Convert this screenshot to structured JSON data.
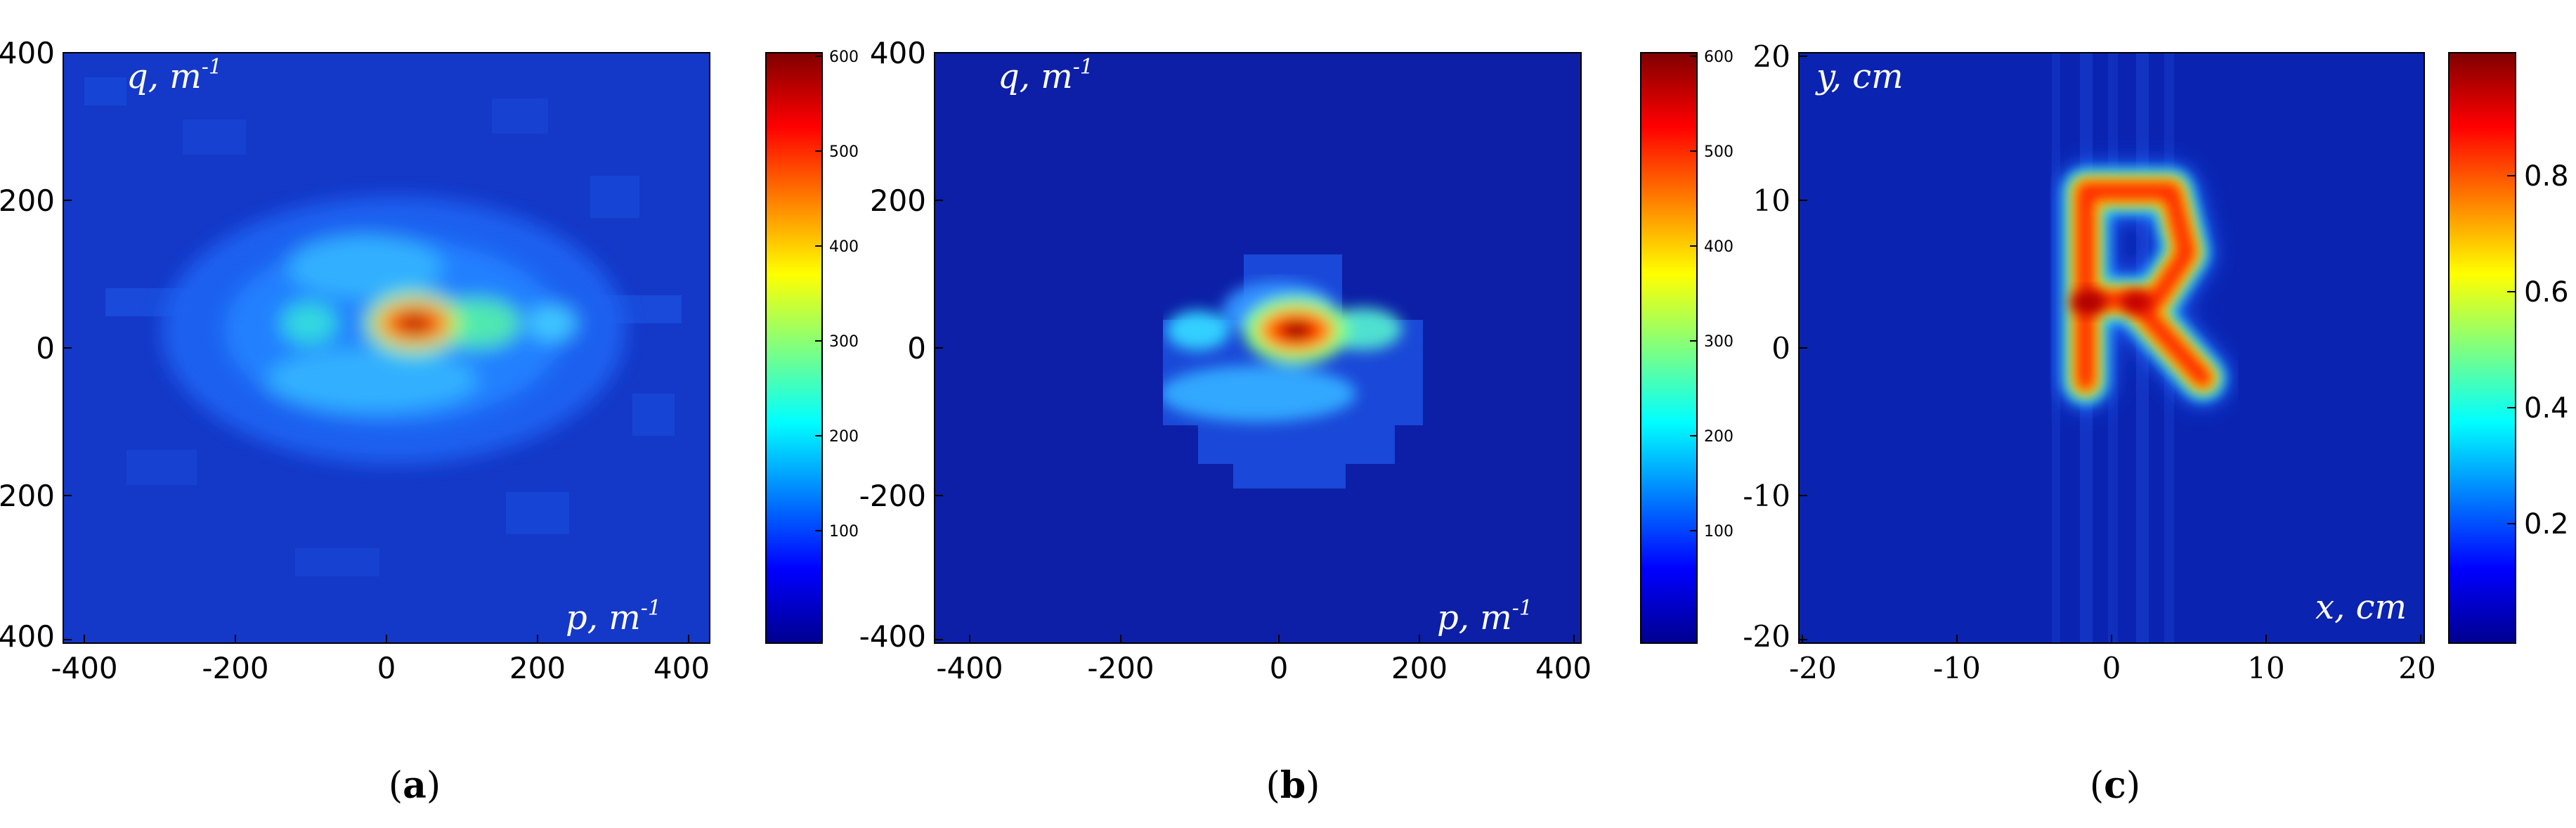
{
  "panels": [
    {
      "caption_open": "(",
      "caption_letter": "a",
      "caption_close": ")",
      "axis_label_x": "p, m",
      "axis_label_x_sup": "-1",
      "axis_label_y": "q, m",
      "axis_label_y_sup": "-1",
      "xticks": [
        "-400",
        "-200",
        "0",
        "200",
        "400"
      ],
      "yticks": [
        "400",
        "200",
        "0",
        "-200",
        "-400"
      ],
      "cbar_ticks": [
        "600",
        "500",
        "400",
        "300",
        "200",
        "100"
      ]
    },
    {
      "caption_open": "(",
      "caption_letter": "b",
      "caption_close": ")",
      "axis_label_x": "p, m",
      "axis_label_x_sup": "-1",
      "axis_label_y": "q, m",
      "axis_label_y_sup": "-1",
      "xticks": [
        "-400",
        "-200",
        "0",
        "200",
        "400"
      ],
      "yticks": [
        "400",
        "200",
        "0",
        "-200",
        "-400"
      ],
      "cbar_ticks": [
        "600",
        "500",
        "400",
        "300",
        "200",
        "100"
      ]
    },
    {
      "caption_open": "(",
      "caption_letter": "c",
      "caption_close": ")",
      "axis_label_x": "x, cm",
      "axis_label_y": "y, cm",
      "xticks": [
        "-20",
        "-10",
        "0",
        "10",
        "20"
      ],
      "yticks": [
        "20",
        "10",
        "0",
        "-10",
        "-20"
      ],
      "cbar_ticks": [
        "0.8",
        "0.6",
        "0.4",
        "0.2"
      ]
    }
  ],
  "chart_data": [
    {
      "type": "heatmap",
      "xlabel": "p, m-1",
      "ylabel": "q, m-1",
      "xlim": [
        -400,
        400
      ],
      "ylim": [
        -400,
        400
      ],
      "colorbar_range": [
        0,
        620
      ],
      "colormap": "jet",
      "background_level": 60,
      "peaks": [
        {
          "x": 15,
          "y": 30,
          "value": 600
        },
        {
          "x": 115,
          "y": 30,
          "value": 320
        },
        {
          "x": -100,
          "y": 30,
          "value": 240
        },
        {
          "x": 30,
          "y": 100,
          "value": 200
        },
        {
          "x": -10,
          "y": -40,
          "value": 190
        },
        {
          "x": 210,
          "y": 30,
          "value": 160
        }
      ]
    },
    {
      "type": "heatmap",
      "xlabel": "p, m-1",
      "ylabel": "q, m-1",
      "xlim": [
        -400,
        400
      ],
      "ylim": [
        -400,
        400
      ],
      "colorbar_range": [
        0,
        620
      ],
      "colormap": "jet",
      "background_level": 0,
      "window": {
        "p_range": [
          -170,
          190
        ],
        "q_range": [
          -160,
          130
        ]
      },
      "peaks": [
        {
          "x": 15,
          "y": 30,
          "value": 600
        },
        {
          "x": 115,
          "y": 30,
          "value": 300
        },
        {
          "x": -110,
          "y": 30,
          "value": 230
        },
        {
          "x": 30,
          "y": 100,
          "value": 200
        },
        {
          "x": -10,
          "y": -40,
          "value": 190
        }
      ]
    },
    {
      "type": "heatmap",
      "xlabel": "x, cm",
      "ylabel": "y, cm",
      "xlim": [
        -20,
        20
      ],
      "ylim": [
        -20,
        20
      ],
      "colorbar_range": [
        0,
        1
      ],
      "colormap": "jet",
      "image_content": "Reconstructed letter R",
      "letter_strokes": [
        [
          [
            -2,
            -3
          ],
          [
            -2,
            10
          ]
        ],
        [
          [
            -2,
            10
          ],
          [
            3.5,
            10
          ]
        ],
        [
          [
            3.5,
            10
          ],
          [
            4.5,
            6
          ]
        ],
        [
          [
            4.5,
            6
          ],
          [
            2.5,
            3
          ]
        ],
        [
          [
            2.5,
            3
          ],
          [
            -2,
            3
          ]
        ],
        [
          [
            1,
            3
          ],
          [
            5.5,
            -2
          ]
        ]
      ],
      "letter_peak": 0.95
    }
  ]
}
